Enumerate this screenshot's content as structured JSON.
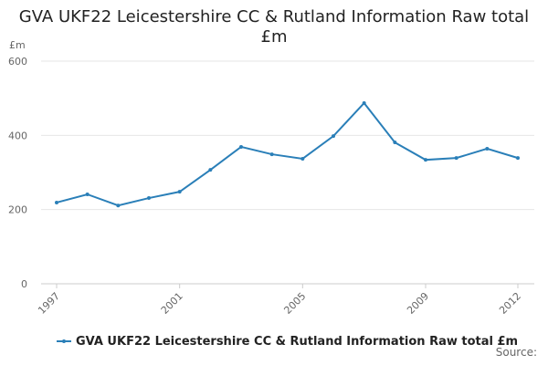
{
  "chart_data": {
    "type": "line",
    "title": "GVA UKF22 Leicestershire CC & Rutland Information Raw total £m",
    "y_label": "£m",
    "x": [
      1997,
      1998,
      1999,
      2000,
      2001,
      2002,
      2003,
      2004,
      2005,
      2006,
      2007,
      2008,
      2009,
      2010,
      2011,
      2012
    ],
    "series": [
      {
        "name": "GVA UKF22 Leicestershire CC & Rutland Information Raw total £m",
        "color": "#2a7fb8",
        "values": [
          219,
          241,
          211,
          231,
          248,
          307,
          369,
          349,
          337,
          398,
          487,
          381,
          334,
          339,
          364,
          339
        ]
      }
    ],
    "xlim": [
      1997,
      2012
    ],
    "xticks": [
      1997,
      2001,
      2005,
      2009,
      2012
    ],
    "ylim": [
      0,
      600
    ],
    "yticks": [
      0,
      200,
      400,
      600
    ],
    "grid": true,
    "legend": "bottom",
    "source_label": "Source:"
  }
}
